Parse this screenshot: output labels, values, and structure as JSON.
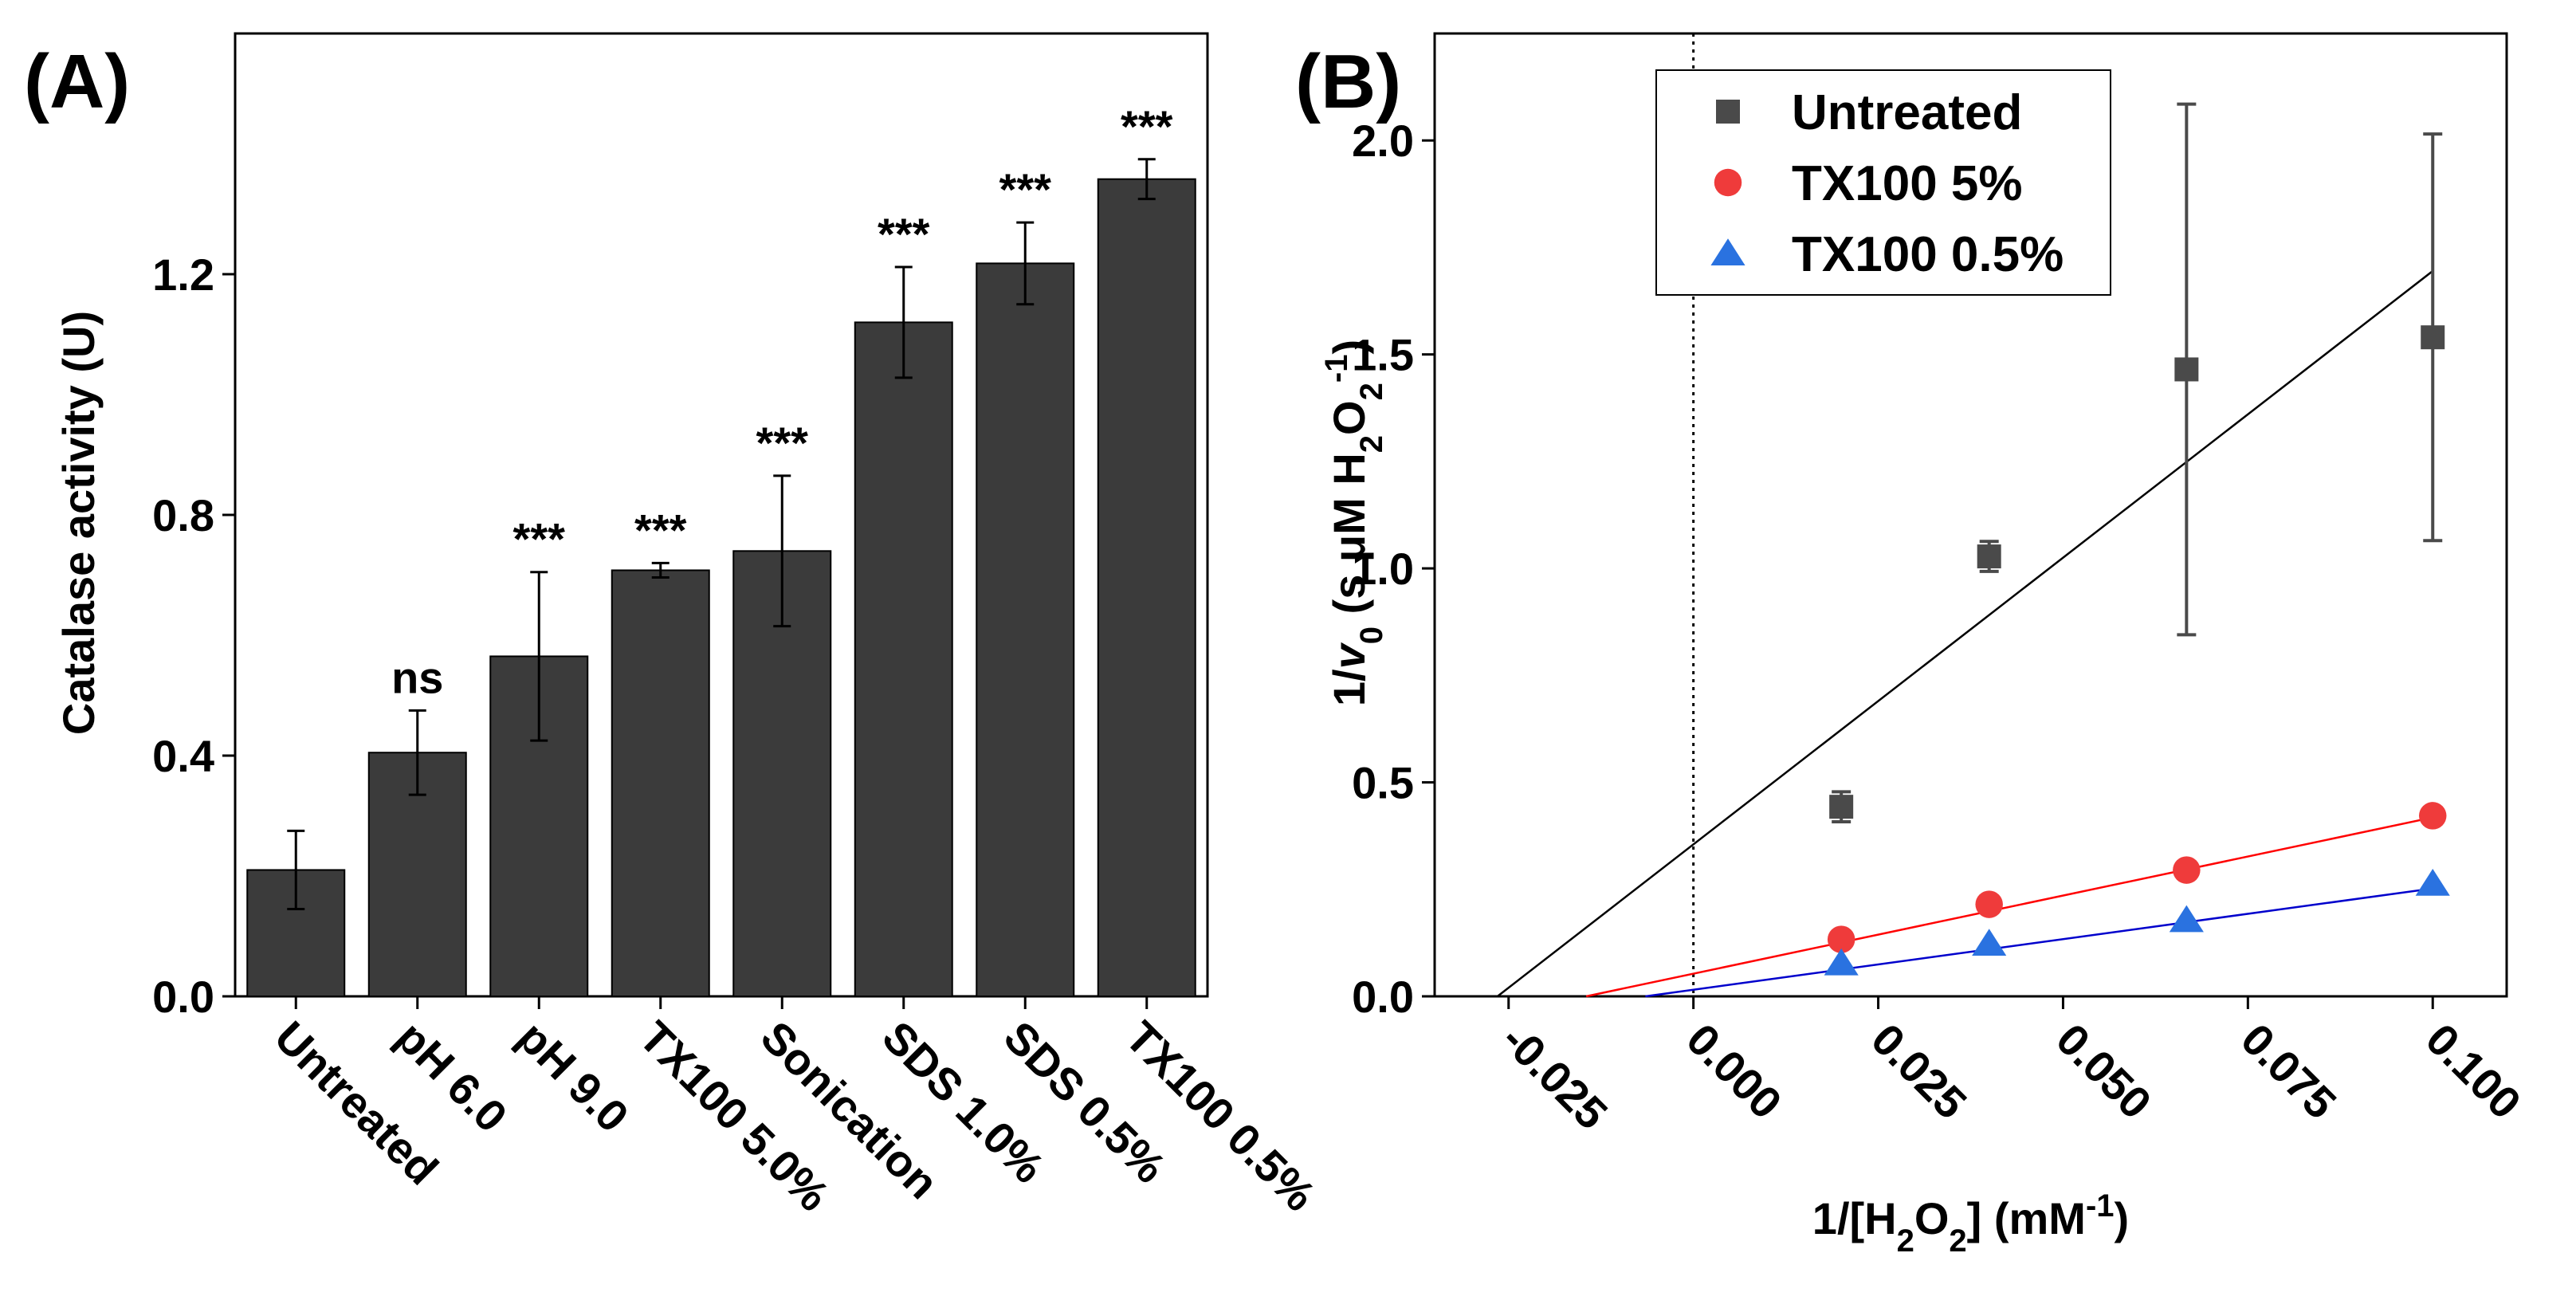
{
  "panels": {
    "a_label": "(A)",
    "b_label": "(B)"
  },
  "chart_data": [
    {
      "type": "bar",
      "ylabel": "Catalase activity (U)",
      "ylim": [
        0,
        1.6
      ],
      "yticks": [
        0.0,
        0.4,
        0.8,
        1.2
      ],
      "ytick_labels": [
        "0.0",
        "0.4",
        "0.8",
        "1.2"
      ],
      "categories": [
        "Untreated",
        "pH 6.0",
        "pH 9.0",
        "TX100 5.0%",
        "Sonication",
        "SDS 1.0%",
        "SDS 0.5%",
        "TX100 0.5%"
      ],
      "values": [
        0.21,
        0.405,
        0.565,
        0.708,
        0.74,
        1.12,
        1.218,
        1.358
      ],
      "errors": [
        0.065,
        0.07,
        0.14,
        0.012,
        0.125,
        0.092,
        0.068,
        0.033
      ],
      "significance": [
        "",
        "ns",
        "***",
        "***",
        "***",
        "***",
        "***",
        "***"
      ],
      "bar_color": "#3b3b3b"
    },
    {
      "type": "scatter",
      "xlabel": {
        "pre": "1/[H",
        "sub": "2",
        "mid": "O",
        "sub2": "2",
        "post": "] (mM",
        "sup": "-1",
        "end": ")"
      },
      "ylabel": {
        "pre": "1/",
        "italic": "v",
        "sub0": "0",
        "mid": " (s μM H",
        "sub": "2",
        "mid2": "O",
        "sub2": "2",
        "sup": "-1",
        "end": ")"
      },
      "xlim": [
        -0.035,
        0.11
      ],
      "ylim": [
        0,
        2.25
      ],
      "xticks": [
        -0.025,
        0.0,
        0.025,
        0.05,
        0.075,
        0.1
      ],
      "xtick_labels": [
        "-0.025",
        "0.000",
        "0.025",
        "0.050",
        "0.075",
        "0.100"
      ],
      "yticks": [
        0.0,
        0.5,
        1.0,
        1.5,
        2.0
      ],
      "ytick_labels": [
        "0.0",
        "0.5",
        "1.0",
        "1.5",
        "2.0"
      ],
      "x_zero_line": 0.0,
      "legend_position": "top-left",
      "series": [
        {
          "name": "Untreated",
          "marker": "square",
          "color": "#4a4a4a",
          "line_color": "#000000",
          "x": [
            0.02,
            0.04,
            0.0667,
            0.1
          ],
          "y": [
            0.443,
            1.028,
            1.465,
            1.54
          ],
          "yerr": [
            0.035,
            0.035,
            0.62,
            0.475
          ],
          "fit": {
            "x0": -0.0265,
            "y0": 0.0,
            "x1": 0.1,
            "y1": 1.695
          }
        },
        {
          "name": "TX100 5%",
          "marker": "circle",
          "color": "#ef3b3b",
          "line_color": "#ff0000",
          "x": [
            0.02,
            0.04,
            0.0667,
            0.1
          ],
          "y": [
            0.133,
            0.215,
            0.295,
            0.422
          ],
          "yerr": [
            0,
            0,
            0,
            0
          ],
          "fit": {
            "x0": -0.0145,
            "y0": 0.0,
            "x1": 0.1,
            "y1": 0.418
          }
        },
        {
          "name": "TX100 0.5%",
          "marker": "triangle",
          "color": "#2a72e0",
          "line_color": "#0000cc",
          "x": [
            0.02,
            0.04,
            0.0667,
            0.1
          ],
          "y": [
            0.077,
            0.123,
            0.178,
            0.263
          ],
          "yerr": [
            0,
            0,
            0,
            0
          ],
          "fit": {
            "x0": -0.0065,
            "y0": 0.0,
            "x1": 0.1,
            "y1": 0.252
          }
        }
      ]
    }
  ]
}
